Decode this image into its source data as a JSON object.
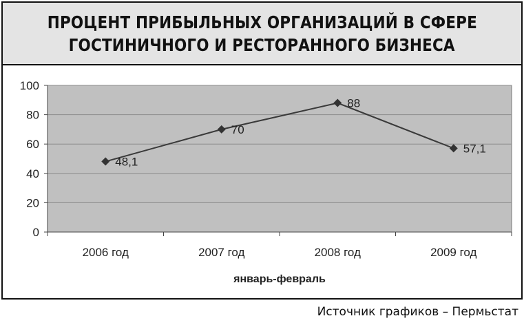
{
  "chart_data": {
    "type": "line",
    "title_lines": [
      "ПРОЦЕНТ ПРИБЫЛЬНЫХ ОРГАНИЗАЦИЙ В СФЕРЕ",
      "ГОСТИНИЧНОГО И РЕСТОРАННОГО БИЗНЕСА"
    ],
    "categories": [
      "2006 год",
      "2007  год",
      "2008 год",
      "2009 год"
    ],
    "values": [
      48.1,
      70,
      88,
      57.1
    ],
    "data_labels": [
      "48,1",
      "70",
      "88",
      "57,1"
    ],
    "xlabel": "январь-февраль",
    "ylabel": "",
    "ylim": [
      0,
      100
    ],
    "yticks": [
      "0",
      "20",
      "40",
      "60",
      "80",
      "100"
    ],
    "grid": true,
    "legend": "none",
    "colors": {
      "plot_background": "#c0c0c0",
      "line": "#3a3a3a",
      "grid": "#8a8a8a",
      "title_background": "#e4e4e4"
    }
  },
  "source": "Источник графиков – Пермьстат"
}
